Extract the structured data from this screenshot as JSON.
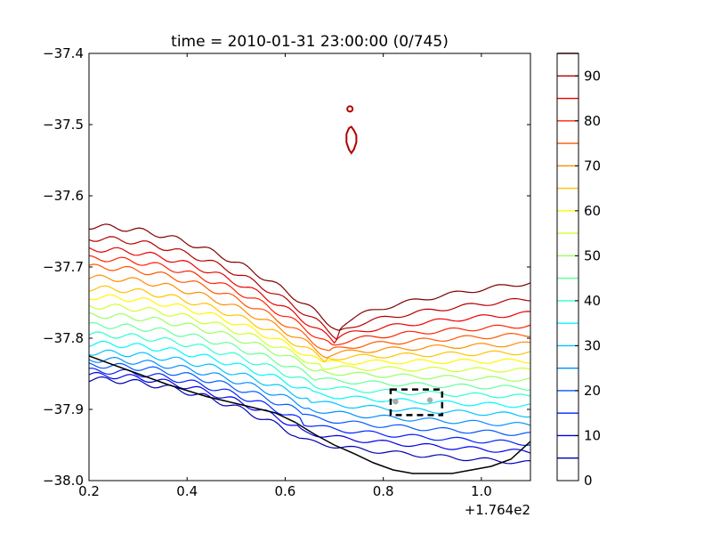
{
  "chart_data": {
    "type": "line",
    "title": "time = 2010-01-31 23:00:00 (0/745)",
    "x_ticks": [
      0.2,
      0.4,
      0.6,
      0.8,
      1.0
    ],
    "x_tick_labels": [
      "0.2",
      "0.4",
      "0.6",
      "0.8",
      "1.0"
    ],
    "x_offset_label": "+1.764e2",
    "xlim": [
      0.2,
      1.1
    ],
    "y_ticks": [
      -37.4,
      -37.5,
      -37.6,
      -37.7,
      -37.8,
      -37.9,
      -38.0
    ],
    "y_tick_labels": [
      "−37.4",
      "−37.5",
      "−37.6",
      "−37.7",
      "−37.8",
      "−37.9",
      "−38.0"
    ],
    "ylim": [
      -38.0,
      -37.4
    ],
    "grid": false,
    "colorbar": {
      "range": [
        0,
        95
      ],
      "tick_values": [
        0,
        10,
        20,
        30,
        40,
        50,
        60,
        70,
        80,
        90
      ],
      "tick_labels": [
        "0",
        "10",
        "20",
        "30",
        "40",
        "50",
        "60",
        "70",
        "80",
        "90"
      ],
      "levels": [
        5,
        10,
        15,
        20,
        25,
        30,
        35,
        40,
        45,
        50,
        55,
        60,
        65,
        70,
        75,
        80,
        85,
        90,
        95
      ]
    },
    "contours": {
      "levels": [
        5,
        10,
        15,
        20,
        25,
        30,
        35,
        40,
        45,
        50,
        55,
        60,
        65,
        70,
        75,
        80,
        85,
        90,
        95
      ],
      "left_y": [
        -37.858,
        -37.852,
        -37.846,
        -37.838,
        -37.83,
        -37.82,
        -37.808,
        -37.795,
        -37.782,
        -37.768,
        -37.755,
        -37.742,
        -37.73,
        -37.715,
        -37.7,
        -37.688,
        -37.675,
        -37.66,
        -37.643
      ],
      "right_y": [
        -37.975,
        -37.96,
        -37.948,
        -37.935,
        -37.922,
        -37.908,
        -37.895,
        -37.882,
        -37.87,
        -37.858,
        -37.845,
        -37.832,
        -37.82,
        -37.808,
        -37.795,
        -37.782,
        -37.765,
        -37.745,
        -37.722
      ],
      "valley_x": [
        0.62,
        0.625,
        0.63,
        0.635,
        0.64,
        0.645,
        0.65,
        0.655,
        0.66,
        0.665,
        0.67,
        0.675,
        0.68,
        0.685,
        0.69,
        0.695,
        0.7,
        0.705,
        0.71
      ],
      "valley_y": [
        -37.935,
        -37.925,
        -37.915,
        -37.905,
        -37.895,
        -37.885,
        -37.875,
        -37.865,
        -37.855,
        -37.845,
        -37.84,
        -37.835,
        -37.83,
        -37.825,
        -37.82,
        -37.812,
        -37.805,
        -37.798,
        -37.79
      ]
    },
    "coastline": {
      "x": [
        0.2,
        0.28,
        0.36,
        0.44,
        0.52,
        0.58,
        0.62,
        0.66,
        0.7,
        0.74,
        0.78,
        0.82,
        0.86,
        0.9,
        0.94,
        0.98,
        1.02,
        1.06,
        1.1
      ],
      "y": [
        -37.825,
        -37.845,
        -37.865,
        -37.882,
        -37.895,
        -37.905,
        -37.918,
        -37.935,
        -37.95,
        -37.962,
        -37.975,
        -37.985,
        -37.99,
        -37.99,
        -37.99,
        -37.985,
        -37.98,
        -37.97,
        -37.945
      ]
    },
    "island_x": [
      0.73,
      0.735,
      0.74,
      0.745,
      0.745,
      0.74,
      0.735,
      0.73,
      0.725,
      0.725
    ],
    "island_y": [
      -37.505,
      -37.503,
      -37.508,
      -37.515,
      -37.525,
      -37.535,
      -37.54,
      -37.535,
      -37.525,
      -37.513
    ],
    "islet_x": 0.732,
    "islet_y": -37.478,
    "box": {
      "x0": 0.815,
      "x1": 0.92,
      "y0": -37.908,
      "y1": -37.872
    },
    "points": [
      {
        "x": 0.825,
        "y": -37.889
      },
      {
        "x": 0.895,
        "y": -37.887
      }
    ]
  }
}
